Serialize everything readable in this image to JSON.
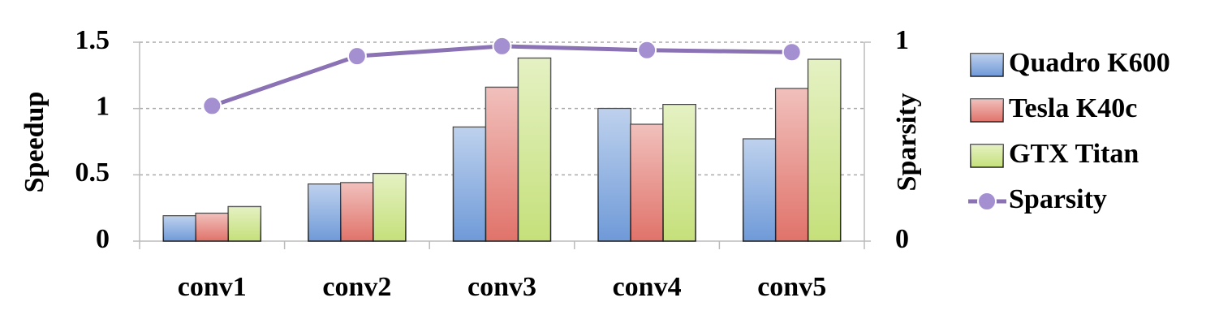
{
  "chart_data": {
    "type": "bar",
    "categories": [
      "conv1",
      "conv2",
      "conv3",
      "conv4",
      "conv5"
    ],
    "y_label": "Speedup",
    "y2_label": "Sparsity",
    "ylim": [
      0,
      1.5
    ],
    "yticks": [
      0,
      0.5,
      1,
      1.5
    ],
    "y2lim": [
      0,
      1
    ],
    "y2ticks": [
      0,
      1
    ],
    "grid": true,
    "legend": "right",
    "series": [
      {
        "name": "Quadro K600",
        "color": "#6f9ad8",
        "values": [
          0.19,
          0.43,
          0.86,
          1.0,
          0.77
        ]
      },
      {
        "name": "Tesla K40c",
        "color": "#e0736a",
        "values": [
          0.21,
          0.44,
          1.16,
          0.88,
          1.15
        ]
      },
      {
        "name": "GTX Titan",
        "color": "#c5e07a",
        "values": [
          0.26,
          0.51,
          1.38,
          1.03,
          1.37
        ]
      },
      {
        "name": "Sparsity",
        "color": "#8a72b5",
        "type": "line",
        "axis": "y2",
        "values": [
          0.68,
          0.93,
          0.98,
          0.96,
          0.95
        ]
      }
    ]
  }
}
